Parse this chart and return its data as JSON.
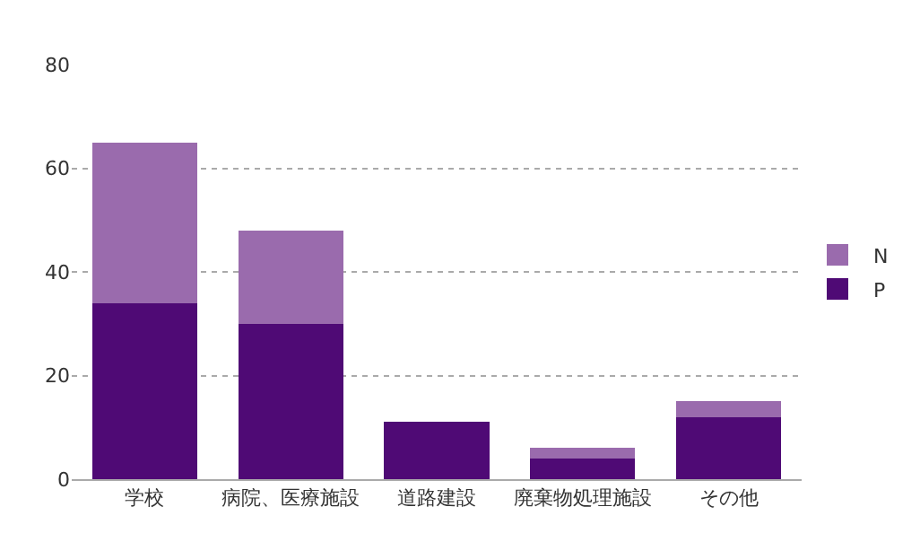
{
  "chart_data": {
    "type": "bar",
    "stacked": true,
    "categories": [
      "学校",
      "病院、医療施設",
      "道路建設",
      "廃棄物処理施設",
      "その他"
    ],
    "series": [
      {
        "name": "P",
        "color": "#4f0a75",
        "values": [
          34,
          30,
          11,
          4,
          12
        ]
      },
      {
        "name": "N",
        "color": "#9a6bad",
        "values": [
          31,
          18,
          0,
          2,
          3
        ]
      }
    ],
    "ylim": [
      0,
      80
    ],
    "yticks": [
      0,
      20,
      40,
      60,
      80
    ],
    "grid": "y",
    "legend": "right"
  }
}
